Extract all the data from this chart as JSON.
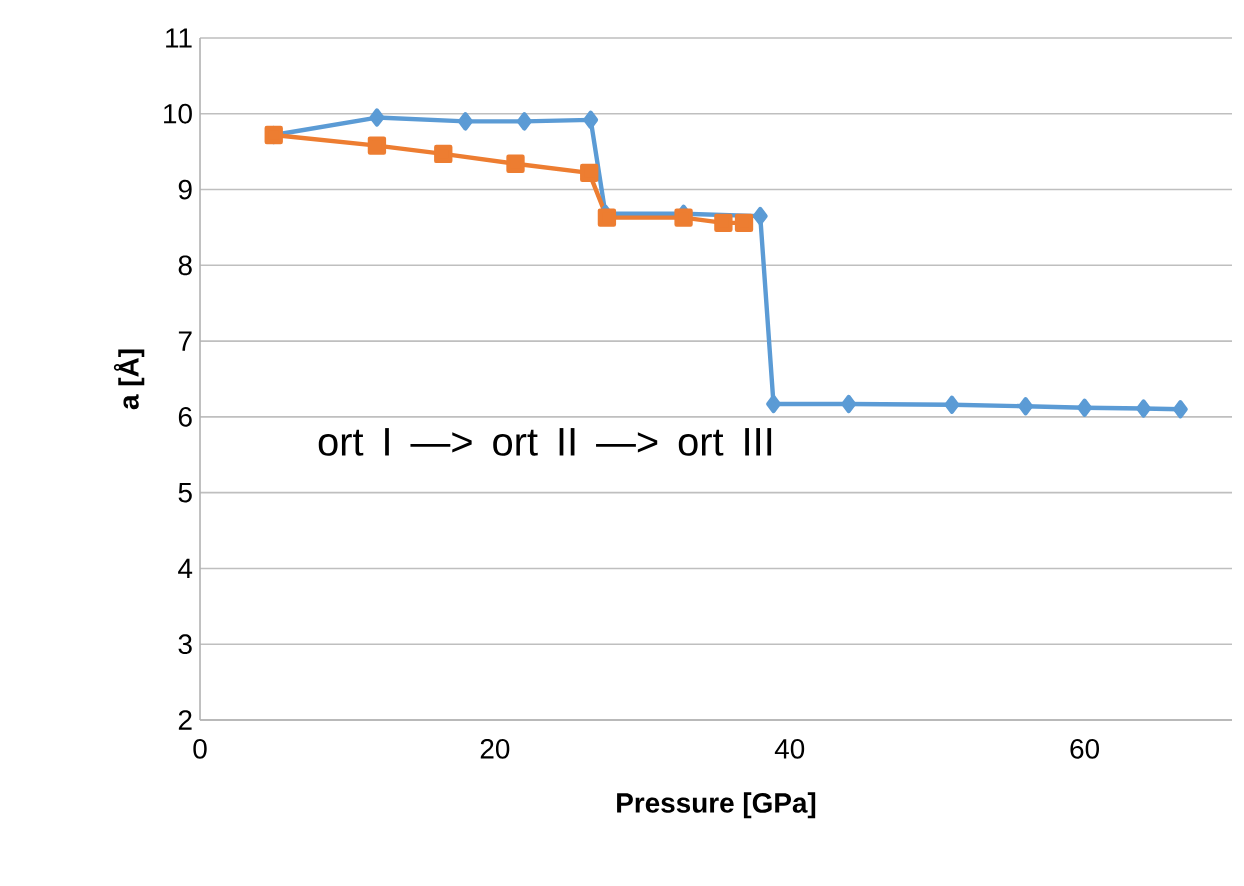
{
  "chart_data": {
    "type": "line",
    "xlabel": "Pressure [GPa]",
    "ylabel": "a [Å]",
    "xlim": [
      0,
      70
    ],
    "xticks": [
      0,
      20,
      40,
      60
    ],
    "ylim": [
      2,
      11
    ],
    "yticks": [
      2,
      3,
      4,
      5,
      6,
      7,
      8,
      9,
      10,
      11
    ],
    "grid": "y",
    "annotations": [
      "ort I   —>   ort II   —>   ort III"
    ],
    "series": [
      {
        "color": "#5b9bd5",
        "marker": "diamond",
        "x": [
          5,
          12,
          18,
          22,
          26.5,
          27.5,
          32.8,
          38,
          38.9,
          44,
          51,
          56,
          60,
          64,
          66.5
        ],
        "values": [
          9.72,
          9.95,
          9.9,
          9.9,
          9.92,
          8.68,
          8.68,
          8.65,
          6.17,
          6.17,
          6.16,
          6.14,
          6.12,
          6.11,
          6.1
        ]
      },
      {
        "color": "#ed7d31",
        "marker": "square",
        "x": [
          5,
          12,
          16.5,
          21.4,
          26.4,
          27.6,
          32.8,
          35.5,
          36.9
        ],
        "values": [
          9.72,
          9.58,
          9.47,
          9.34,
          9.22,
          8.63,
          8.63,
          8.56,
          8.56
        ]
      }
    ]
  }
}
